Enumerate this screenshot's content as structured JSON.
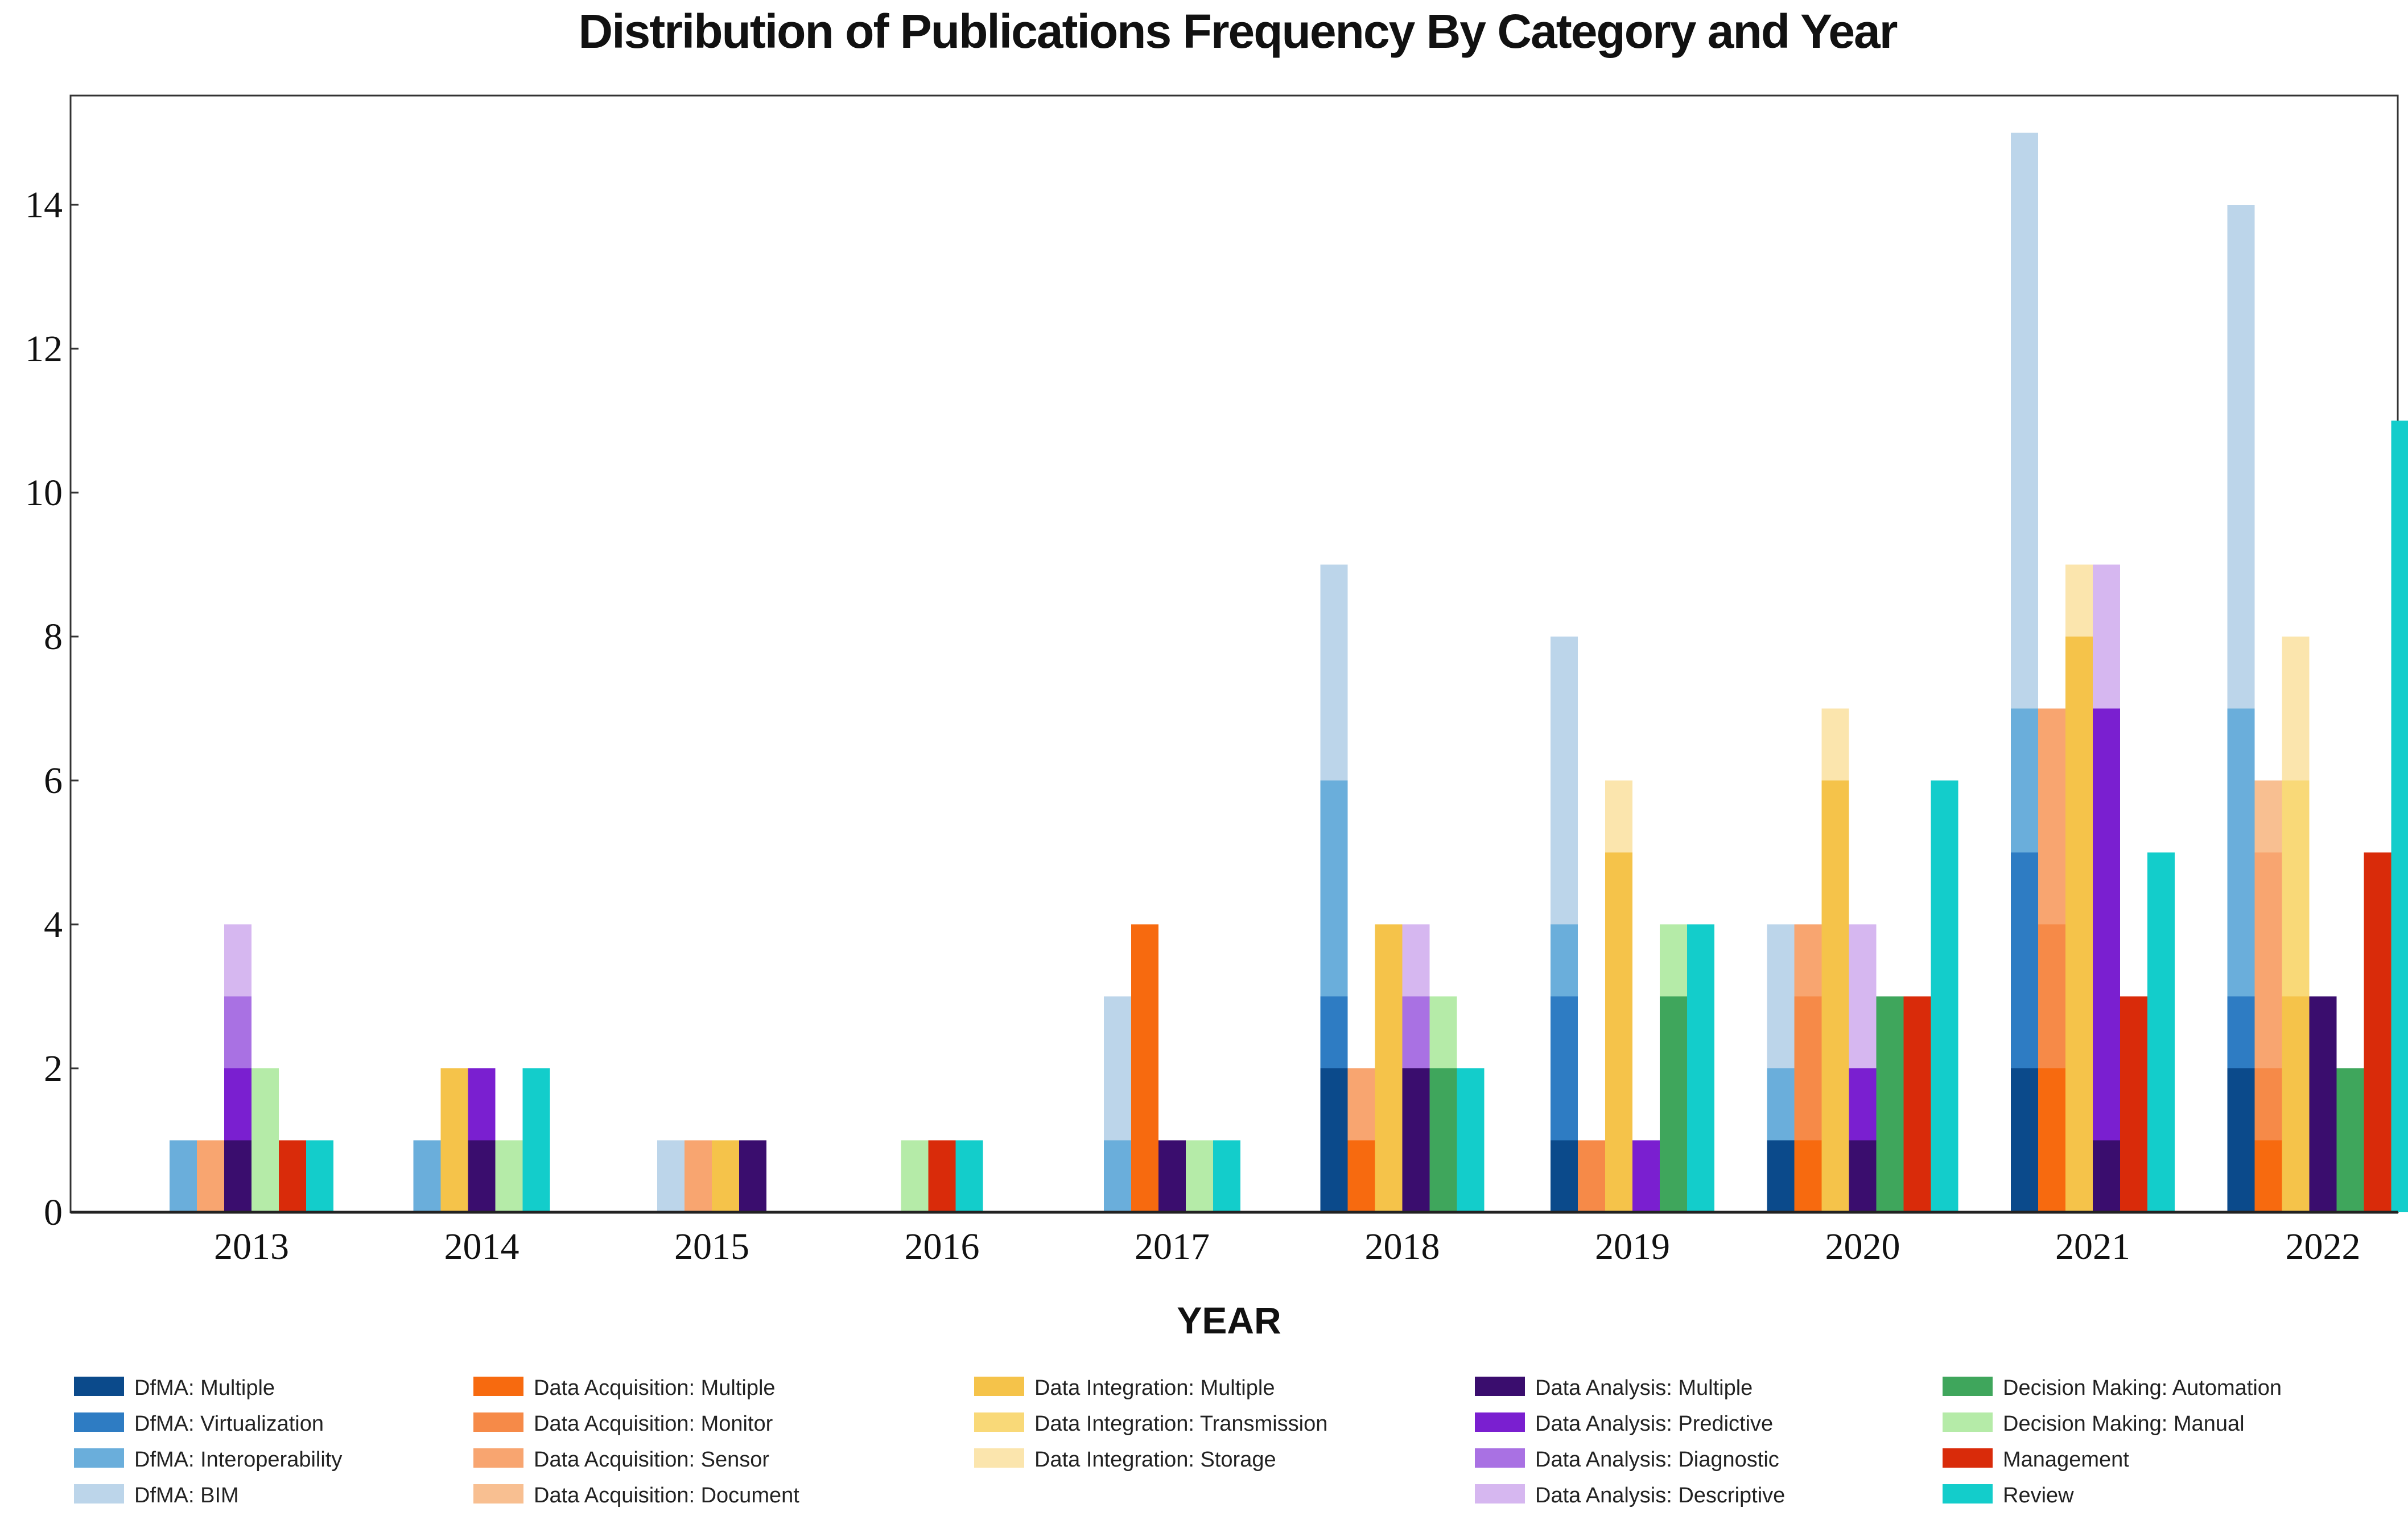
{
  "chart_data": {
    "type": "bar",
    "title": "Distribution of  Publications Frequency By Category and Year",
    "xlabel": "YEAR",
    "ylabel": "",
    "ylim": [
      0,
      15.5
    ],
    "yticks": [
      0,
      2,
      4,
      6,
      8,
      10,
      12,
      14
    ],
    "categories": [
      "2013",
      "2014",
      "2015",
      "2016",
      "2017",
      "2018",
      "2019",
      "2020",
      "2021",
      "2022"
    ],
    "legend_position": "bottom",
    "groups": [
      {
        "name": "DfMA",
        "series": [
          {
            "name": "DfMA: Multiple",
            "color": "#0b4a8b",
            "values": [
              0,
              0,
              0,
              0,
              0,
              2,
              1,
              1,
              2,
              2
            ]
          },
          {
            "name": "DfMA: Virtualization",
            "color": "#2e7cc3",
            "values": [
              0,
              0,
              0,
              0,
              0,
              1,
              2,
              0,
              3,
              1
            ]
          },
          {
            "name": "DfMA: Interoperability",
            "color": "#6aaedb",
            "values": [
              1,
              1,
              0,
              0,
              1,
              3,
              1,
              1,
              2,
              4
            ]
          },
          {
            "name": "DfMA: BIM",
            "color": "#bcd5ea",
            "values": [
              0,
              0,
              1,
              0,
              2,
              3,
              4,
              2,
              8,
              7
            ]
          }
        ]
      },
      {
        "name": "Data Acquisition",
        "series": [
          {
            "name": "Data Acquisition: Multiple",
            "color": "#f76a0f",
            "values": [
              0,
              0,
              0,
              0,
              4,
              1,
              0,
              1,
              2,
              1
            ]
          },
          {
            "name": "Data Acquisition: Monitor",
            "color": "#f68a48",
            "values": [
              0,
              0,
              0,
              0,
              0,
              0,
              1,
              2,
              2,
              1
            ]
          },
          {
            "name": "Data Acquisition: Sensor",
            "color": "#f8a570",
            "values": [
              1,
              0,
              1,
              0,
              0,
              1,
              0,
              1,
              3,
              3
            ]
          },
          {
            "name": "Data Acquisition: Document",
            "color": "#f8bf91",
            "values": [
              0,
              0,
              0,
              0,
              0,
              0,
              0,
              0,
              0,
              1
            ]
          }
        ]
      },
      {
        "name": "Data Integration",
        "series": [
          {
            "name": "Data Integration: Multiple",
            "color": "#f5c34a",
            "values": [
              0,
              2,
              1,
              0,
              0,
              4,
              5,
              6,
              8,
              3
            ]
          },
          {
            "name": "Data Integration: Transmission",
            "color": "#f9d978",
            "values": [
              0,
              0,
              0,
              0,
              0,
              0,
              0,
              0,
              0,
              3
            ]
          },
          {
            "name": "Data Integration: Storage",
            "color": "#fbe5ad",
            "values": [
              0,
              0,
              0,
              0,
              0,
              0,
              1,
              1,
              1,
              2
            ]
          }
        ]
      },
      {
        "name": "Data Analysis",
        "series": [
          {
            "name": "Data Analysis: Multiple",
            "color": "#3a0d6e",
            "values": [
              1,
              1,
              1,
              0,
              1,
              2,
              0,
              1,
              1,
              3
            ]
          },
          {
            "name": "Data Analysis: Predictive",
            "color": "#7a1fd0",
            "values": [
              1,
              1,
              0,
              0,
              0,
              0,
              1,
              1,
              6,
              0
            ]
          },
          {
            "name": "Data Analysis: Diagnostic",
            "color": "#a971e3",
            "values": [
              1,
              0,
              0,
              0,
              0,
              1,
              0,
              0,
              0,
              0
            ]
          },
          {
            "name": "Data Analysis: Descriptive",
            "color": "#d6b7f0",
            "values": [
              1,
              0,
              0,
              0,
              0,
              1,
              0,
              2,
              2,
              0
            ]
          }
        ]
      },
      {
        "name": "Decision Making",
        "series": [
          {
            "name": "Decision Making: Automation",
            "color": "#3fa65c",
            "values": [
              0,
              0,
              0,
              0,
              0,
              2,
              3,
              3,
              0,
              2
            ]
          },
          {
            "name": "Decision Making: Manual",
            "color": "#b5eba8",
            "values": [
              2,
              1,
              0,
              1,
              1,
              1,
              1,
              0,
              0,
              0
            ]
          }
        ]
      },
      {
        "name": "Management",
        "series": [
          {
            "name": "Management",
            "color": "#d92b0a",
            "values": [
              1,
              0,
              0,
              1,
              0,
              0,
              0,
              3,
              3,
              5
            ]
          }
        ]
      },
      {
        "name": "Review",
        "series": [
          {
            "name": "Review",
            "color": "#13cdcb",
            "values": [
              1,
              2,
              0,
              1,
              1,
              2,
              4,
              6,
              5,
              11
            ]
          }
        ]
      }
    ],
    "legend": {
      "columns": [
        [
          "DfMA: Multiple",
          "DfMA: Virtualization",
          "DfMA: Interoperability",
          "DfMA: BIM"
        ],
        [
          "Data Acquisition: Multiple",
          "Data Acquisition: Monitor",
          "Data Acquisition: Sensor",
          "Data Acquisition: Document"
        ],
        [
          "Data Integration: Multiple",
          "Data Integration: Transmission",
          "Data Integration: Storage"
        ],
        [
          "Data Analysis: Multiple",
          "Data Analysis: Predictive",
          "Data Analysis: Diagnostic",
          "Data Analysis: Descriptive"
        ],
        [
          "Decision Making: Automation",
          "Decision Making: Manual",
          "Management",
          "Review"
        ]
      ]
    }
  }
}
